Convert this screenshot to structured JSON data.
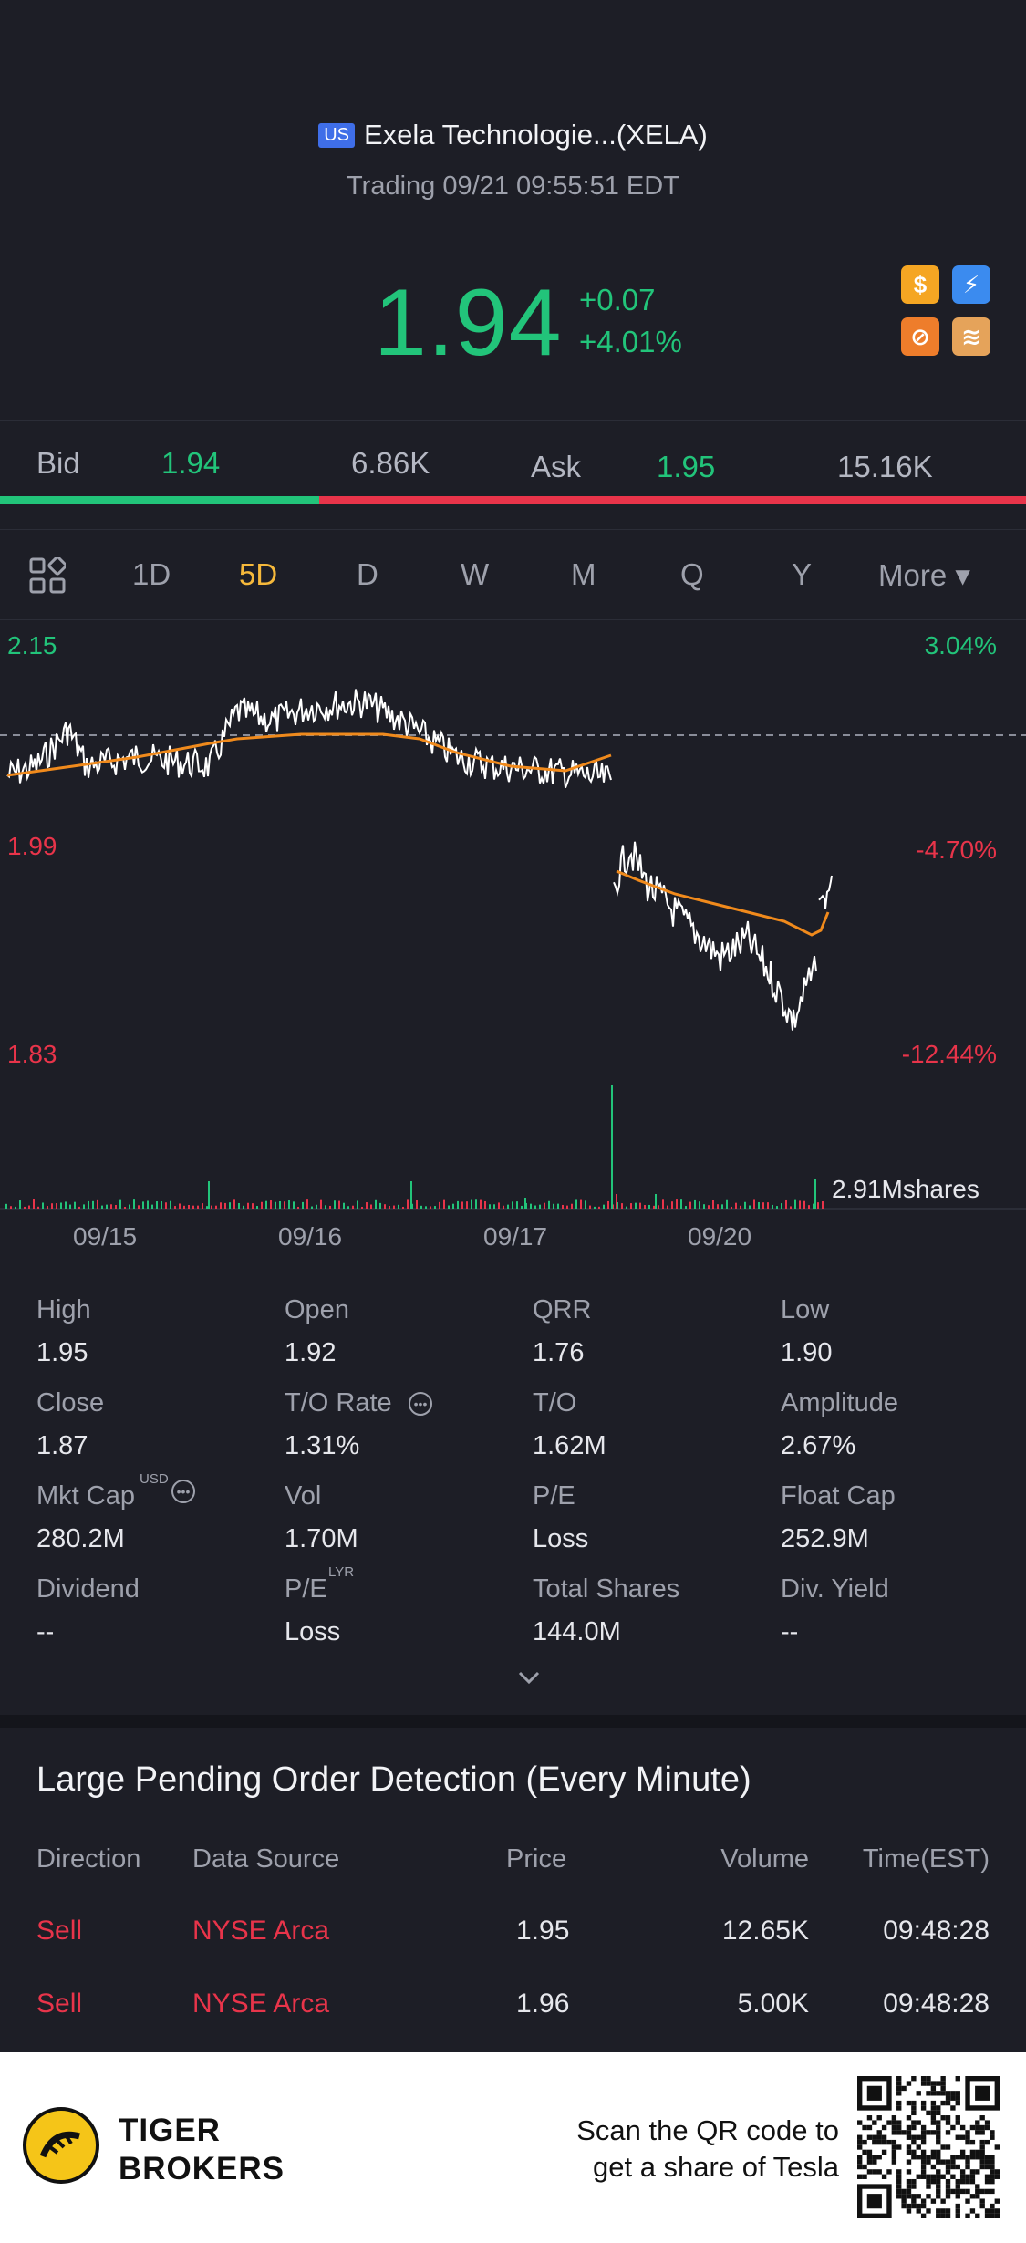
{
  "stock": {
    "market": "US",
    "name": "Exela Technologie...(XELA)",
    "status": "Trading 09/21 09:55:51 EDT",
    "price": "1.94",
    "change": "+0.07",
    "change_pct": "+4.01%"
  },
  "badges": [
    "dollar-icon",
    "lightning-icon",
    "no-short-icon",
    "layers-icon"
  ],
  "bidask": {
    "bid_label": "Bid",
    "bid_price": "1.94",
    "bid_size": "6.86K",
    "ask_label": "Ask",
    "ask_price": "1.95",
    "ask_size": "15.16K",
    "bid_share": 0.31
  },
  "tabs": [
    "1D",
    "5D",
    "D",
    "W",
    "M",
    "Q",
    "Y",
    "More ▾"
  ],
  "active_tab": "5D",
  "chart": {
    "price_axis": [
      "2.15",
      "1.99",
      "1.83"
    ],
    "pct_axis": [
      "3.04%",
      "-4.70%",
      "-12.44%"
    ],
    "volume_label": "2.91Mshares",
    "dates": [
      "09/15",
      "09/16",
      "09/17",
      "09/20"
    ],
    "colors": {
      "price": "#ffffff",
      "avg": "#f08a1c",
      "up": "#22c47a",
      "down": "#e8344a"
    }
  },
  "chart_data": {
    "type": "line",
    "x": [
      "09/15",
      "09/16",
      "09/17",
      "09/20",
      "09/21"
    ],
    "ylim": [
      1.83,
      2.15
    ],
    "series": [],
    "volume_peak": "2.91Mshares"
  },
  "stats": [
    {
      "label": "High",
      "value": "1.95"
    },
    {
      "label": "Open",
      "value": "1.92"
    },
    {
      "label": "QRR",
      "value": "1.76"
    },
    {
      "label": "Low",
      "value": "1.90"
    },
    {
      "label": "Close",
      "value": "1.87"
    },
    {
      "label": "T/O Rate",
      "value": "1.31%"
    },
    {
      "label": "T/O",
      "value": "1.62M"
    },
    {
      "label": "Amplitude",
      "value": "2.67%"
    },
    {
      "label": "Mkt Cap",
      "value": "280.2M",
      "sup": "USD"
    },
    {
      "label": "Vol",
      "value": "1.70M"
    },
    {
      "label": "P/E",
      "value": "Loss"
    },
    {
      "label": "Float Cap",
      "value": "252.9M"
    },
    {
      "label": "Dividend",
      "value": "--"
    },
    {
      "label": "P/E",
      "value": "Loss",
      "sup": "LYR"
    },
    {
      "label": "Total Shares",
      "value": "144.0M"
    },
    {
      "label": "Div. Yield",
      "value": "--"
    }
  ],
  "orders": {
    "title": "Large Pending Order Detection (Every Minute)",
    "columns": [
      "Direction",
      "Data Source",
      "Price",
      "Volume",
      "Time(EST)"
    ],
    "rows": [
      [
        "Sell",
        "NYSE Arca",
        "1.95",
        "12.65K",
        "09:48:28"
      ],
      [
        "Sell",
        "NYSE Arca",
        "1.96",
        "5.00K",
        "09:48:28"
      ]
    ]
  },
  "footer": {
    "brand_line1": "TIGER",
    "brand_line2": "BROKERS",
    "scan_line1": "Scan the QR code to",
    "scan_line2": "get a share of Tesla"
  }
}
